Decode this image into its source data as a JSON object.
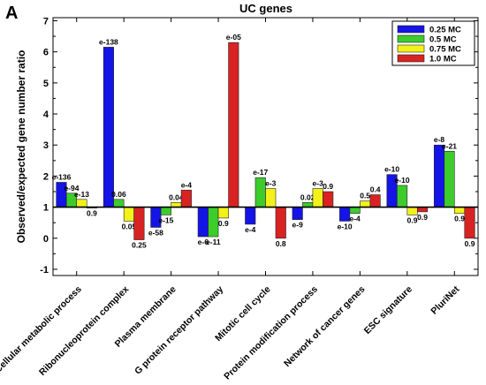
{
  "panel_letter": "A",
  "colors": {
    "s1": "#1414e6",
    "s2": "#3dcc2b",
    "s3": "#f2f21a",
    "s4": "#d92222"
  },
  "chart_data": {
    "type": "bar",
    "title": "UC genes",
    "ylabel": "Observed/expected gene number ratio",
    "xlabel": "",
    "ylim": [
      -1.2,
      7.1
    ],
    "yticks": [
      -1,
      0,
      1,
      2,
      3,
      4,
      5,
      6,
      7
    ],
    "baseline": 1,
    "grid": false,
    "legend_position": "top-right",
    "categories": [
      "Cellular metabolic process",
      "Ribonucleoprotein complex",
      "Plasma membrane",
      "G protein receptor pathway",
      "Mitotic cell cycle",
      "Protein modification process",
      "Network of cancer genes",
      "ESC signature",
      "PluriNet"
    ],
    "series": [
      {
        "name": "0.25 MC",
        "values": [
          1.8,
          6.15,
          0.35,
          0.05,
          0.45,
          0.6,
          0.55,
          2.05,
          3.0
        ],
        "labels": [
          "e-136",
          "e-138",
          "e-58",
          "e-6",
          "e-4",
          "e-9",
          "e-10",
          "e-10",
          "e-8"
        ]
      },
      {
        "name": "0.5 MC",
        "values": [
          1.45,
          1.25,
          0.75,
          0.05,
          1.95,
          1.15,
          0.8,
          1.7,
          2.8
        ],
        "labels": [
          "e-94",
          "0.06",
          "e-15",
          "e-11",
          "e-17",
          "0.02",
          "e-4",
          "e-10",
          "e-21"
        ]
      },
      {
        "name": "0.75 MC",
        "values": [
          1.25,
          0.55,
          1.15,
          0.65,
          1.6,
          1.6,
          1.2,
          0.75,
          0.8
        ],
        "labels": [
          "e-13",
          "0.05",
          "0.04",
          "0.9",
          "e-3",
          "e-3",
          "0.5",
          "0.9",
          "0.9"
        ]
      },
      {
        "name": "1.0 MC",
        "values": [
          0.98,
          -0.05,
          1.55,
          6.3,
          0.0,
          1.5,
          1.4,
          0.85,
          0.0
        ],
        "labels": [
          "0.9",
          "0.25",
          "e-4",
          "e-05",
          "0.8",
          "0.9",
          "0.4",
          "0.9",
          "0.9"
        ]
      }
    ]
  }
}
